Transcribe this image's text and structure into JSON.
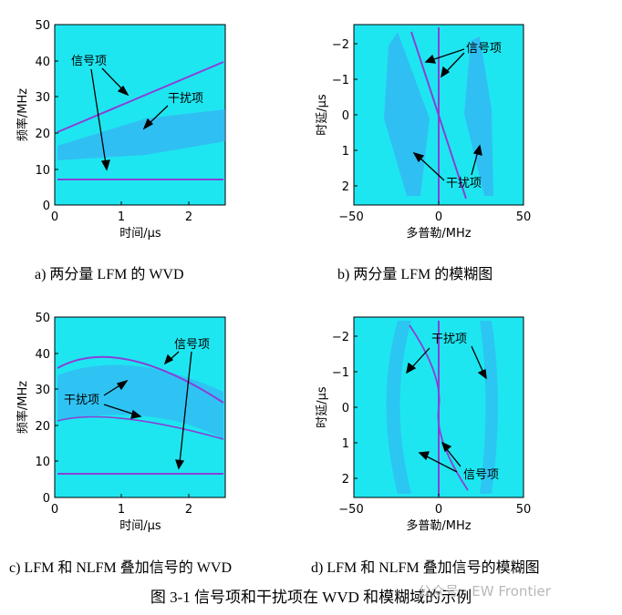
{
  "panels": [
    {
      "id": "a",
      "kind": "wvd",
      "caption": "a) 两分量 LFM 的 WVD",
      "xlabel": "时间/μs",
      "ylabel": "频率/MHz",
      "xticks": [
        "0",
        "1",
        "2"
      ],
      "yticks": [
        "0",
        "10",
        "20",
        "30",
        "40",
        "50"
      ],
      "annotations": [
        "信号项",
        "干扰项"
      ]
    },
    {
      "id": "b",
      "kind": "ambiguity",
      "caption": "b) 两分量 LFM 的模糊图",
      "xlabel": "多普勒/MHz",
      "ylabel": "时延/μs",
      "xticks": [
        "−50",
        "0",
        "50"
      ],
      "yticks": [
        "−2",
        "−1",
        "0",
        "1",
        "2"
      ],
      "annotations": [
        "信号项",
        "干扰项"
      ]
    },
    {
      "id": "c",
      "kind": "wvd",
      "caption": "c) LFM 和 NLFM 叠加信号的 WVD",
      "xlabel": "时间/μs",
      "ylabel": "频率/MHz",
      "xticks": [
        "0",
        "1",
        "2"
      ],
      "yticks": [
        "0",
        "10",
        "20",
        "30",
        "40",
        "50"
      ],
      "annotations": [
        "信号项",
        "干扰项"
      ]
    },
    {
      "id": "d",
      "kind": "ambiguity",
      "caption": "d) LFM 和 NLFM 叠加信号的模糊图",
      "xlabel": "多普勒/MHz",
      "ylabel": "时延/μs",
      "xticks": [
        "−50",
        "0",
        "50"
      ],
      "yticks": [
        "−2",
        "−1",
        "0",
        "1",
        "2"
      ],
      "annotations": [
        "干扰项",
        "信号项"
      ]
    }
  ],
  "figure_caption": "图 3-1 信号项和干扰项在 WVD 和模糊域的示例",
  "watermark": "公众号 · EW Frontier",
  "colors": {
    "background": "#1ee6f0",
    "signal": "#8a3fd6",
    "cross_term": "#3f9ff5"
  }
}
